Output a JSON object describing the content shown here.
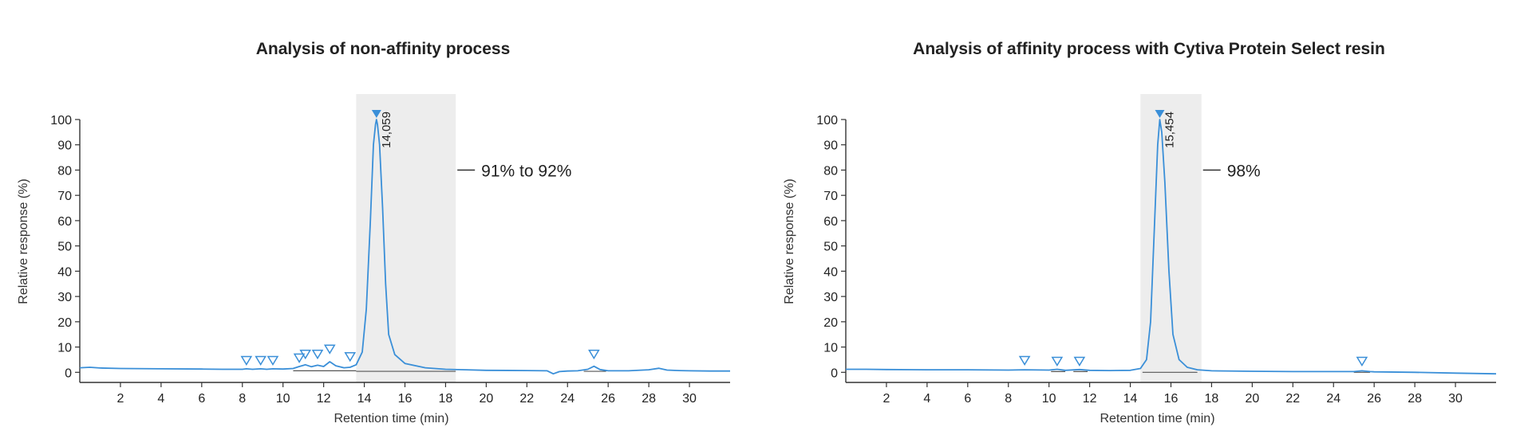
{
  "chart_data": [
    {
      "type": "line",
      "title": "Analysis of non-affinity process",
      "xlabel": "Retention time (min)",
      "ylabel": "Relative response (%)",
      "xlim": [
        0,
        32
      ],
      "ylim": [
        -4,
        100
      ],
      "xticks": [
        2,
        4,
        6,
        8,
        10,
        12,
        14,
        16,
        18,
        20,
        22,
        24,
        26,
        28,
        30
      ],
      "yticks": [
        0,
        10,
        20,
        30,
        40,
        50,
        60,
        70,
        80,
        90,
        100
      ],
      "grid": false,
      "highlight_region": [
        13.6,
        18.5
      ],
      "purity_label": "91% to 92%",
      "peak_label": "14,059",
      "peak_x": 14.6,
      "peak_y": 100,
      "colors": {
        "line": "#3a8fd8",
        "highlight": "#ededed",
        "marker": "#3a8fd8",
        "baseline": "#555555"
      },
      "minor_markers": [
        {
          "x": 8.2,
          "y": 1.5
        },
        {
          "x": 8.9,
          "y": 1.5
        },
        {
          "x": 9.5,
          "y": 1.5
        },
        {
          "x": 10.8,
          "y": 2.5
        },
        {
          "x": 11.1,
          "y": 4
        },
        {
          "x": 11.7,
          "y": 4
        },
        {
          "x": 12.3,
          "y": 6
        },
        {
          "x": 13.3,
          "y": 3
        },
        {
          "x": 25.3,
          "y": 4
        }
      ],
      "baselines": [
        {
          "x": [
            10.5,
            13.6
          ],
          "y": 0.6
        },
        {
          "x": [
            13.6,
            18.5
          ],
          "y": 0.4
        },
        {
          "x": [
            24.8,
            25.9
          ],
          "y": 0.4
        }
      ],
      "series": [
        {
          "x": [
            0,
            0.5,
            1,
            2,
            4,
            6,
            7,
            8,
            8.2,
            8.5,
            8.9,
            9.2,
            9.5,
            10,
            10.5,
            10.8,
            11.1,
            11.4,
            11.7,
            12,
            12.3,
            12.6,
            13,
            13.3,
            13.6,
            13.9,
            14.1,
            14.3,
            14.45,
            14.55,
            14.6,
            14.65,
            14.75,
            14.9,
            15.05,
            15.2,
            15.5,
            16,
            17,
            18,
            19,
            20,
            22,
            23,
            23.3,
            23.6,
            24,
            24.5,
            25,
            25.3,
            25.6,
            26,
            27,
            28,
            28.5,
            28.9,
            29.5,
            30,
            31,
            32
          ],
          "y": [
            1.8,
            2,
            1.7,
            1.5,
            1.4,
            1.3,
            1.2,
            1.2,
            1.4,
            1.2,
            1.4,
            1.2,
            1.4,
            1.3,
            1.5,
            2.3,
            3,
            2.2,
            2.8,
            2.3,
            4.2,
            2.6,
            1.8,
            2,
            3,
            8,
            25,
            60,
            90,
            98,
            100,
            98,
            90,
            65,
            35,
            15,
            7,
            3.5,
            1.8,
            1.2,
            1,
            0.8,
            0.7,
            0.6,
            -0.6,
            0.3,
            0.5,
            0.6,
            1.2,
            2.4,
            1.1,
            0.6,
            0.6,
            1,
            1.6,
            0.9,
            0.7,
            0.6,
            0.5,
            0.5
          ]
        }
      ]
    },
    {
      "type": "line",
      "title": "Analysis of affinity process with Cytiva Protein Select resin",
      "xlabel": "Retention time (min)",
      "ylabel": "Relative response (%)",
      "xlim": [
        0,
        32
      ],
      "ylim": [
        -4,
        100
      ],
      "xticks": [
        2,
        4,
        6,
        8,
        10,
        12,
        14,
        16,
        18,
        20,
        22,
        24,
        26,
        28,
        30
      ],
      "yticks": [
        0,
        10,
        20,
        30,
        40,
        50,
        60,
        70,
        80,
        90,
        100
      ],
      "grid": false,
      "highlight_region": [
        14.5,
        17.5
      ],
      "purity_label": "98%",
      "peak_label": "15,454",
      "peak_x": 15.45,
      "peak_y": 100,
      "colors": {
        "line": "#3a8fd8",
        "highlight": "#ededed",
        "marker": "#3a8fd8",
        "baseline": "#555555"
      },
      "minor_markers": [
        {
          "x": 8.8,
          "y": 1.5
        },
        {
          "x": 10.4,
          "y": 1.2
        },
        {
          "x": 11.5,
          "y": 1.2
        },
        {
          "x": 25.4,
          "y": 1.2
        }
      ],
      "baselines": [
        {
          "x": [
            10.1,
            10.8
          ],
          "y": 0.3
        },
        {
          "x": [
            11.2,
            11.9
          ],
          "y": 0.3
        },
        {
          "x": [
            14.6,
            17.3
          ],
          "y": 0
        },
        {
          "x": [
            25.0,
            25.8
          ],
          "y": 0
        }
      ],
      "series": [
        {
          "x": [
            0,
            1,
            2,
            4,
            6,
            8,
            8.8,
            10,
            10.4,
            10.8,
            11.5,
            12,
            13,
            14,
            14.5,
            14.8,
            15,
            15.2,
            15.35,
            15.45,
            15.55,
            15.7,
            15.9,
            16.1,
            16.4,
            16.8,
            17.3,
            18,
            20,
            22,
            24,
            25,
            25.4,
            25.8,
            26,
            28,
            30,
            32
          ],
          "y": [
            1.2,
            1.2,
            1.1,
            1,
            1,
            0.9,
            1,
            0.9,
            1.2,
            0.8,
            1.1,
            0.8,
            0.7,
            0.8,
            1.5,
            5,
            20,
            60,
            90,
            100,
            95,
            75,
            40,
            15,
            5,
            2,
            1,
            0.6,
            0.4,
            0.3,
            0.3,
            0.3,
            0.6,
            0.3,
            0.2,
            0,
            -0.3,
            -0.6
          ]
        }
      ]
    }
  ]
}
